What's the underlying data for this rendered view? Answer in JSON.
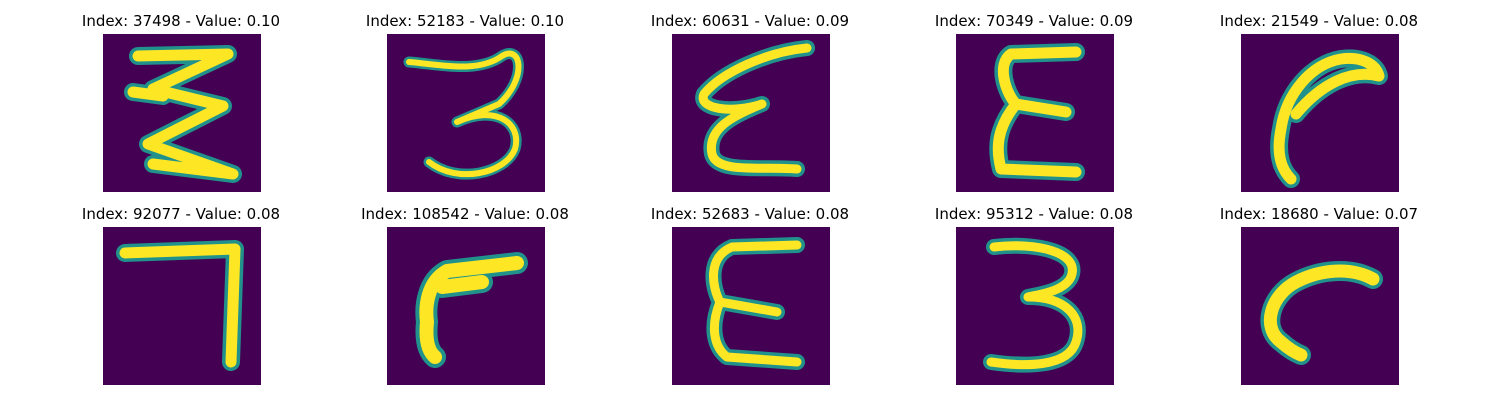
{
  "figure": {
    "background_color": "#ffffff",
    "image_colors": {
      "background": "#440154",
      "stroke": "#fde725",
      "edge": "#21918c"
    },
    "panels": [
      {
        "title": "Index: 37498 - Value: 0.10",
        "glyph": "Z-squiggle"
      },
      {
        "title": "Index: 52183 - Value: 0.10",
        "glyph": "3"
      },
      {
        "title": "Index: 60631 - Value: 0.09",
        "glyph": "E-script"
      },
      {
        "title": "Index: 70349 - Value: 0.09",
        "glyph": "E"
      },
      {
        "title": "Index: 21549 - Value: 0.08",
        "glyph": "hook"
      },
      {
        "title": "Index: 92077 - Value: 0.08",
        "glyph": "7"
      },
      {
        "title": "Index: 108542 - Value: 0.08",
        "glyph": "r"
      },
      {
        "title": "Index: 52683 - Value: 0.08",
        "glyph": "E"
      },
      {
        "title": "Index: 95312 - Value: 0.08",
        "glyph": "3"
      },
      {
        "title": "Index: 18680 - Value: 0.07",
        "glyph": "C-hook"
      }
    ]
  }
}
